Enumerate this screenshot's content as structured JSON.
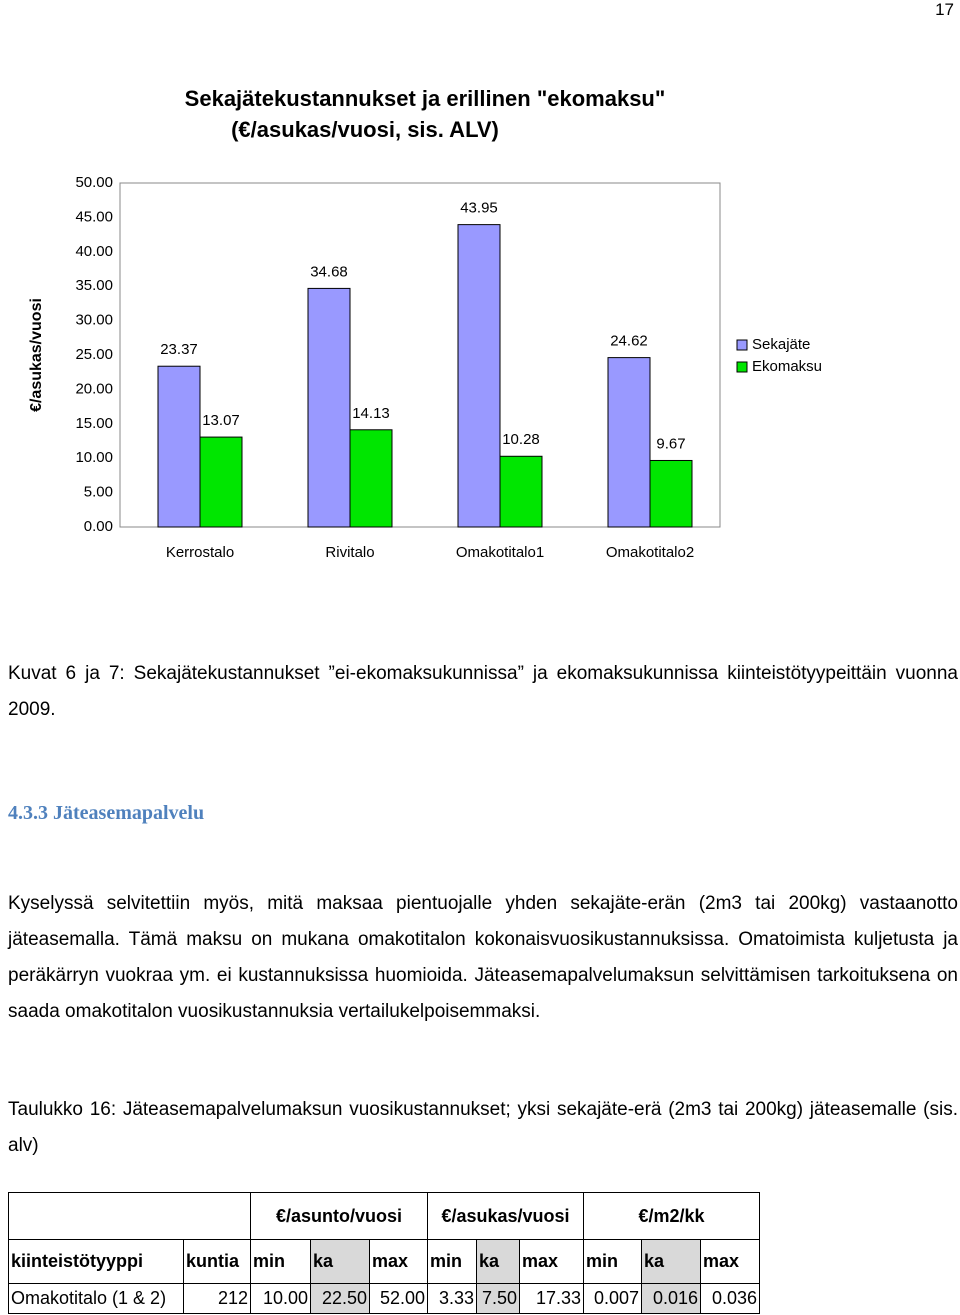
{
  "page_number": "17",
  "chart_data": {
    "type": "bar",
    "title": "Sekajätekustannukset ja erillinen \"ekomaksu\"",
    "subtitle": "(€/asukas/vuosi, sis. ALV)",
    "y_label": "€/asukas/vuosi",
    "categories": [
      "Kerrostalo",
      "Rivitalo",
      "Omakotitalo1",
      "Omakotitalo2"
    ],
    "series": [
      {
        "name": "Sekajäte",
        "color": "#9999ff",
        "values": [
          23.37,
          34.68,
          43.95,
          24.62
        ]
      },
      {
        "name": "Ekomaksu",
        "color": "#00e600",
        "values": [
          13.07,
          14.13,
          10.28,
          9.67
        ]
      }
    ],
    "ylim": [
      0,
      50
    ],
    "yticks": [
      {
        "value": 0,
        "label": "0.00"
      },
      {
        "value": 5,
        "label": "5.00"
      },
      {
        "value": 10,
        "label": "10.00"
      },
      {
        "value": 15,
        "label": "15.00"
      },
      {
        "value": 20,
        "label": "20.00"
      },
      {
        "value": 25,
        "label": "25.00"
      },
      {
        "value": 30,
        "label": "30.00"
      },
      {
        "value": 35,
        "label": "35.00"
      },
      {
        "value": 40,
        "label": "40.00"
      },
      {
        "value": 45,
        "label": "45.00"
      },
      {
        "value": 50,
        "label": "50.00"
      }
    ],
    "grid": false,
    "legend": "right"
  },
  "caption": "Kuvat 6 ja 7: Sekajätekustannukset ”ei-ekomaksukunnissa” ja ekomaksukunnissa kiinteistötyypeittäin vuonna 2009.",
  "section_heading": "4.3.3 Jäteasemapalvelu",
  "paragraph": "Kyselyssä selvitettiin myös, mitä maksaa pientuojalle yhden sekajäte-erän (2m3 tai 200kg) vastaanotto jäteasemalla. Tämä maksu on mukana omakotitalon kokonaisvuosikustannuksissa. Omatoimista kuljetusta ja peräkärryn vuokraa ym. ei kustannuksissa huomioida. Jäteasemapalvelumaksun selvittämisen tarkoituksena on saada omakotitalon vuosikustannuksia vertailukelpoisemmaksi.",
  "table_caption": "Taulukko 16: Jäteasemapalvelumaksun vuosikustannukset; yksi sekajäte-erä (2m3 tai 200kg) jäteasemalle (sis. alv)",
  "table": {
    "group_headers": [
      "€/asunto/vuosi",
      "€/asukas/vuosi",
      "€/m2/kk"
    ],
    "columns": [
      "kiinteistötyyppi",
      "kuntia",
      "min",
      "ka",
      "max",
      "min",
      "ka",
      "max",
      "min",
      "ka",
      "max"
    ],
    "rows": [
      [
        "Omakotitalo (1 & 2)",
        "212",
        "10.00",
        "22.50",
        "52.00",
        "3.33",
        "7.50",
        "17.33",
        "0.007",
        "0.016",
        "0.036"
      ]
    ]
  }
}
